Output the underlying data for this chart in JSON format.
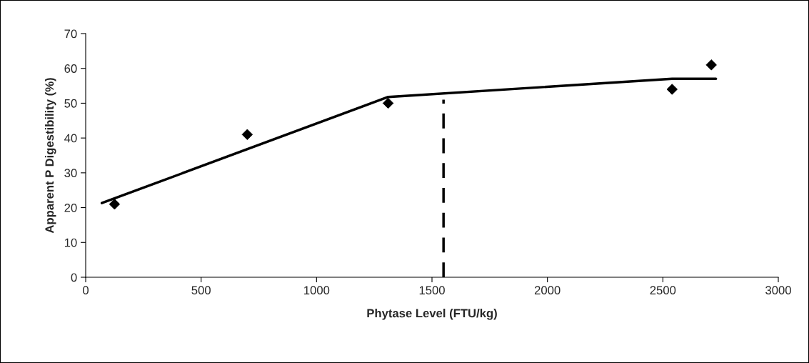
{
  "chart_data": {
    "type": "scatter",
    "xlabel": "Phytase Level (FTU/kg)",
    "ylabel": "Apparent P Digestibility (%)",
    "xlim": [
      0,
      3000
    ],
    "xticks": [
      0,
      500,
      1000,
      1500,
      2000,
      2500,
      3000
    ],
    "ylim": [
      0,
      70
    ],
    "yticks": [
      0,
      10,
      20,
      30,
      40,
      50,
      60,
      70
    ],
    "grid": false,
    "series": [
      {
        "color": "#000000",
        "marker": "diamond",
        "x": [
          125,
          700,
          1310,
          2540,
          2710
        ],
        "values": [
          21,
          41,
          50,
          54,
          61
        ]
      },
      {
        "type": "line",
        "color": "#000000",
        "line_style": "solid",
        "marker": "none",
        "x": [
          70,
          1310,
          2540,
          2730
        ],
        "values": [
          21.3,
          51.8,
          57,
          57
        ]
      },
      {
        "type": "line",
        "color": "#000000",
        "line_style": "dashed",
        "marker": "none",
        "x": [
          1550,
          1550
        ],
        "values": [
          0,
          51
        ]
      }
    ]
  }
}
